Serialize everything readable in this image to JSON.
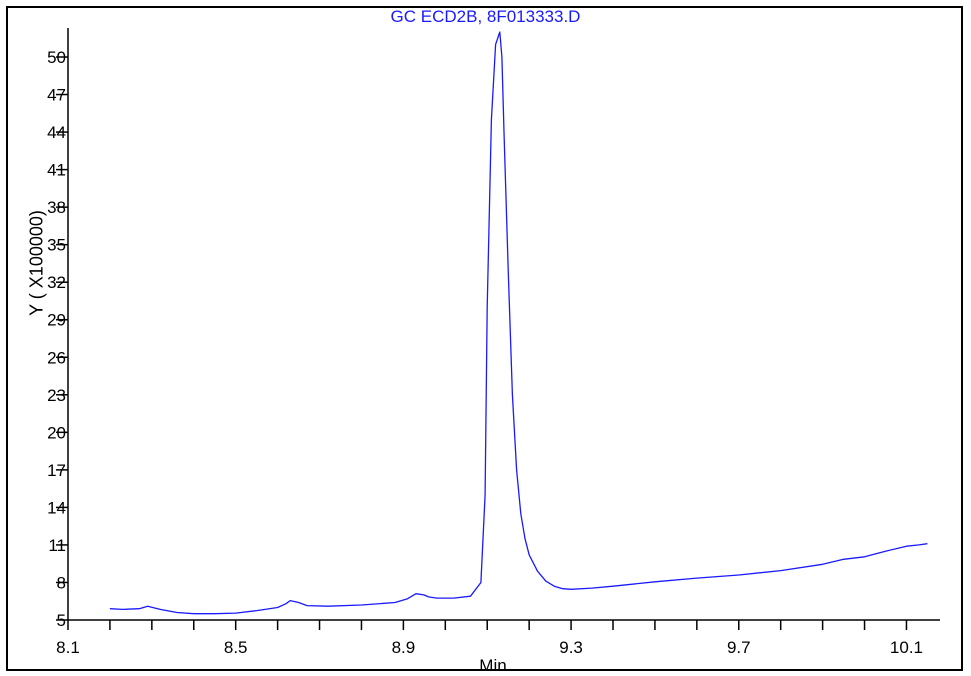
{
  "chart_data": {
    "type": "line",
    "title": "GC ECD2B, 8F013333.D",
    "xlabel": "Min",
    "ylabel": "Y ( X100000)",
    "xlim": [
      8.1,
      10.18
    ],
    "ylim": [
      5,
      52
    ],
    "x_ticks": [
      8.1,
      8.5,
      8.9,
      9.3,
      9.7,
      10.1
    ],
    "y_ticks": [
      5,
      8,
      11,
      14,
      17,
      20,
      23,
      26,
      29,
      32,
      35,
      38,
      41,
      44,
      47,
      50
    ],
    "grid": false,
    "line_color": "#1a1aff",
    "series": [
      {
        "x": [
          8.2,
          8.23,
          8.27,
          8.29,
          8.32,
          8.36,
          8.4,
          8.45,
          8.5,
          8.55,
          8.6,
          8.62,
          8.63,
          8.65,
          8.67,
          8.72,
          8.8,
          8.88,
          8.91,
          8.93,
          8.95,
          8.96,
          8.98,
          9.02,
          9.06,
          9.085,
          9.095,
          9.1,
          9.11,
          9.12,
          9.13,
          9.135,
          9.14,
          9.15,
          9.16,
          9.17,
          9.18,
          9.19,
          9.2,
          9.22,
          9.24,
          9.26,
          9.28,
          9.3,
          9.35,
          9.4,
          9.5,
          9.6,
          9.7,
          9.8,
          9.9,
          9.95,
          10.0,
          10.05,
          10.1,
          10.13,
          10.15
        ],
        "y": [
          5.9,
          5.85,
          5.9,
          6.1,
          5.85,
          5.6,
          5.5,
          5.5,
          5.55,
          5.75,
          6.0,
          6.3,
          6.55,
          6.4,
          6.15,
          6.1,
          6.2,
          6.4,
          6.7,
          7.1,
          7.0,
          6.85,
          6.75,
          6.75,
          6.9,
          8.0,
          15.0,
          30.0,
          45.0,
          51.0,
          52.0,
          50.0,
          44.0,
          33.0,
          23.0,
          17.0,
          13.5,
          11.5,
          10.2,
          8.9,
          8.1,
          7.7,
          7.5,
          7.45,
          7.55,
          7.7,
          8.05,
          8.35,
          8.6,
          8.95,
          9.45,
          9.85,
          10.05,
          10.5,
          10.9,
          11.0,
          11.1
        ]
      }
    ]
  }
}
